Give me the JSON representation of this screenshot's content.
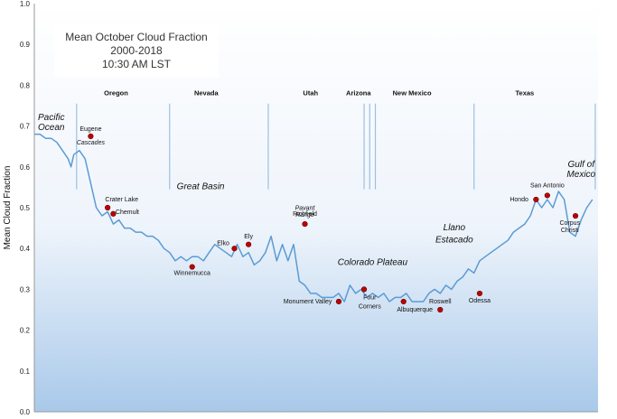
{
  "chart_data": {
    "type": "line",
    "title_lines": [
      "Mean October Cloud Fraction",
      "2000-2018",
      "10:30 AM LST"
    ],
    "ylabel": "Mean Cloud Fraction",
    "ylim": [
      0.0,
      1.0
    ],
    "yticks": [
      "0.0",
      "0.1",
      "0.2",
      "0.3",
      "0.4",
      "0.5",
      "0.6",
      "0.7",
      "0.8",
      "0.9",
      "1.0"
    ],
    "grid": false,
    "x_extent": [
      0,
      100
    ],
    "series": [
      {
        "x": [
          0,
          1,
          2,
          3,
          4,
          5,
          6,
          6.5,
          7,
          8,
          9,
          10,
          11,
          12,
          13,
          14,
          15,
          16,
          17,
          18,
          19,
          20,
          21,
          22,
          23,
          24,
          25,
          26,
          27,
          28,
          29,
          30,
          31,
          32,
          33,
          34,
          35,
          36,
          37,
          38,
          39,
          40,
          41,
          42,
          43,
          44,
          45,
          46,
          47,
          48,
          49,
          50,
          51,
          52,
          53,
          54,
          55,
          56,
          57,
          58,
          59,
          60,
          61,
          62,
          63,
          64,
          65,
          66,
          67,
          68,
          69,
          70,
          71,
          72,
          73,
          74,
          75,
          76,
          77,
          78,
          79,
          80,
          81,
          82,
          83,
          84,
          85,
          86,
          87,
          88,
          89,
          90,
          91,
          92,
          93,
          94,
          95,
          96,
          97,
          98,
          99
        ],
        "values": [
          0.68,
          0.68,
          0.67,
          0.67,
          0.66,
          0.64,
          0.62,
          0.6,
          0.63,
          0.64,
          0.62,
          0.56,
          0.5,
          0.48,
          0.49,
          0.46,
          0.47,
          0.45,
          0.45,
          0.44,
          0.44,
          0.43,
          0.43,
          0.42,
          0.4,
          0.39,
          0.37,
          0.38,
          0.37,
          0.38,
          0.38,
          0.37,
          0.39,
          0.41,
          0.4,
          0.39,
          0.38,
          0.41,
          0.38,
          0.39,
          0.36,
          0.37,
          0.39,
          0.43,
          0.37,
          0.41,
          0.37,
          0.41,
          0.32,
          0.31,
          0.29,
          0.29,
          0.28,
          0.28,
          0.28,
          0.29,
          0.27,
          0.31,
          0.29,
          0.3,
          0.28,
          0.29,
          0.28,
          0.29,
          0.27,
          0.28,
          0.28,
          0.29,
          0.27,
          0.27,
          0.27,
          0.29,
          0.3,
          0.29,
          0.31,
          0.3,
          0.32,
          0.33,
          0.35,
          0.34,
          0.37,
          0.38,
          0.39,
          0.4,
          0.41,
          0.42,
          0.44,
          0.45,
          0.46,
          0.48,
          0.52,
          0.5,
          0.52,
          0.5,
          0.54,
          0.52,
          0.44,
          0.43,
          0.47,
          0.5,
          0.52
        ]
      }
    ],
    "dividers": [
      7.5,
      24,
      41.5,
      58.5,
      59.5,
      60.5,
      78,
      99.5
    ],
    "states": [
      {
        "label": "Oregon",
        "x": 14.5
      },
      {
        "label": "Nevada",
        "x": 30.5
      },
      {
        "label": "Utah",
        "x": 49
      },
      {
        "label": "Arizona",
        "x": 57.5
      },
      {
        "label": "New Mexico",
        "x": 67
      },
      {
        "label": "Texas",
        "x": 87
      }
    ],
    "cities": [
      {
        "label": "Eugene",
        "x": 10,
        "y": 0.675,
        "lx": 10,
        "ly": 0.688
      },
      {
        "label": "Crater Lake",
        "x": 13,
        "y": 0.5,
        "lx": 15.5,
        "ly": 0.515
      },
      {
        "label": "Chemult",
        "x": 14,
        "y": 0.485,
        "lx": 16.5,
        "ly": 0.485
      },
      {
        "label": "Winnemucca",
        "x": 28,
        "y": 0.355,
        "lx": 28,
        "ly": 0.335
      },
      {
        "label": "Elko",
        "x": 35.5,
        "y": 0.4,
        "lx": 33.5,
        "ly": 0.408
      },
      {
        "label": "Ely",
        "x": 38,
        "y": 0.41,
        "lx": 38,
        "ly": 0.425
      },
      {
        "label": "Richfield",
        "x": 48,
        "y": 0.46,
        "lx": 48,
        "ly": 0.48
      },
      {
        "label": "Monument Valley",
        "x": 54,
        "y": 0.27,
        "lx": 48.5,
        "ly": 0.265
      },
      {
        "label": "Four",
        "x": 58.5,
        "y": 0.3,
        "lx": 59.5,
        "ly": 0.275
      },
      {
        "label": "Corners",
        "x": 58.5,
        "y": 0.3,
        "lx": 59.5,
        "ly": 0.253
      },
      {
        "label": "Albuquerque",
        "x": 65.5,
        "y": 0.27,
        "lx": 67.5,
        "ly": 0.246
      },
      {
        "label": "Roswell",
        "x": 72,
        "y": 0.25,
        "lx": 72,
        "ly": 0.265
      },
      {
        "label": "Odessa",
        "x": 79,
        "y": 0.29,
        "lx": 79,
        "ly": 0.268
      },
      {
        "label": "Hondo",
        "x": 89,
        "y": 0.52,
        "lx": 86,
        "ly": 0.516
      },
      {
        "label": "San Antonio",
        "x": 91,
        "y": 0.53,
        "lx": 91,
        "ly": 0.55
      },
      {
        "label": "Corpus",
        "x": 96,
        "y": 0.48,
        "lx": 95,
        "ly": 0.458
      },
      {
        "label": "Christi",
        "x": 96,
        "y": 0.48,
        "lx": 95,
        "ly": 0.44
      }
    ],
    "regions": [
      {
        "label": "Pacific",
        "x": 3,
        "y": 0.715,
        "size": "large"
      },
      {
        "label": "Ocean",
        "x": 3,
        "y": 0.69,
        "size": "large"
      },
      {
        "label": "Cascades",
        "x": 10,
        "y": 0.655,
        "size": "small"
      },
      {
        "label": "Great Basin",
        "x": 29.5,
        "y": 0.545,
        "size": "large"
      },
      {
        "label": "Pavant",
        "x": 48,
        "y": 0.495,
        "size": "small"
      },
      {
        "label": "Range",
        "x": 48,
        "y": 0.478,
        "size": "small"
      },
      {
        "label": "Colorado Plateau",
        "x": 60,
        "y": 0.36,
        "size": "large"
      },
      {
        "label": "Llano",
        "x": 74.5,
        "y": 0.445,
        "size": "large"
      },
      {
        "label": "Estacado",
        "x": 74.5,
        "y": 0.415,
        "size": "large"
      },
      {
        "label": "Gulf of",
        "x": 97,
        "y": 0.6,
        "size": "large"
      },
      {
        "label": "Mexico",
        "x": 97,
        "y": 0.575,
        "size": "large"
      }
    ]
  }
}
